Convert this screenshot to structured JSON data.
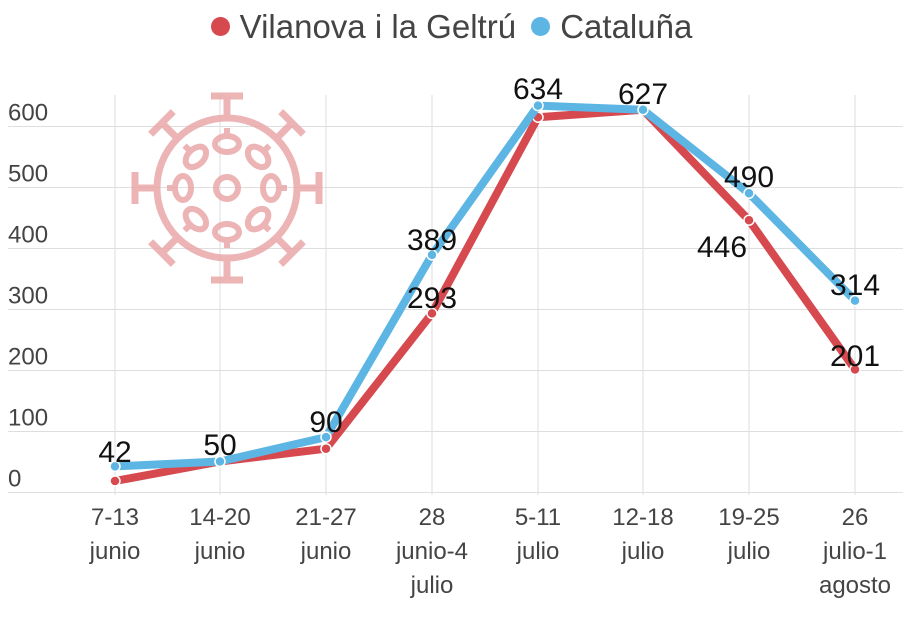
{
  "legend": {
    "items": [
      {
        "label": "Vilanova i la Geltrú",
        "color": "#d6494f"
      },
      {
        "label": "Cataluña",
        "color": "#5db5e3"
      }
    ]
  },
  "icons": {
    "watermark": "virus-icon",
    "watermark_color": "#e9a7a9"
  },
  "chart_data": {
    "type": "line",
    "title": "",
    "xlabel": "",
    "ylabel": "",
    "ylim": [
      0,
      650
    ],
    "yticks": [
      0,
      100,
      200,
      300,
      400,
      500,
      600
    ],
    "grid": true,
    "legend_position": "top",
    "categories": [
      [
        "7-13",
        "junio"
      ],
      [
        "14-20",
        "junio"
      ],
      [
        "21-27",
        "junio"
      ],
      [
        "28",
        "junio-4",
        "julio"
      ],
      [
        "5-11",
        "julio"
      ],
      [
        "12-18",
        "julio"
      ],
      [
        "19-25",
        "julio"
      ],
      [
        "26",
        "julio-1",
        "agosto"
      ]
    ],
    "series": [
      {
        "name": "Vilanova i la Geltrú",
        "color": "#d6494f",
        "values": [
          18,
          50,
          71,
          293,
          615,
          627,
          446,
          201
        ],
        "labels": [
          "",
          "",
          "",
          "293",
          "",
          "",
          "446",
          "201"
        ]
      },
      {
        "name": "Cataluña",
        "color": "#5db5e3",
        "values": [
          42,
          50,
          90,
          389,
          634,
          627,
          490,
          314
        ],
        "labels": [
          "42",
          "50",
          "90",
          "389",
          "634",
          "627",
          "490",
          "314"
        ]
      }
    ]
  }
}
